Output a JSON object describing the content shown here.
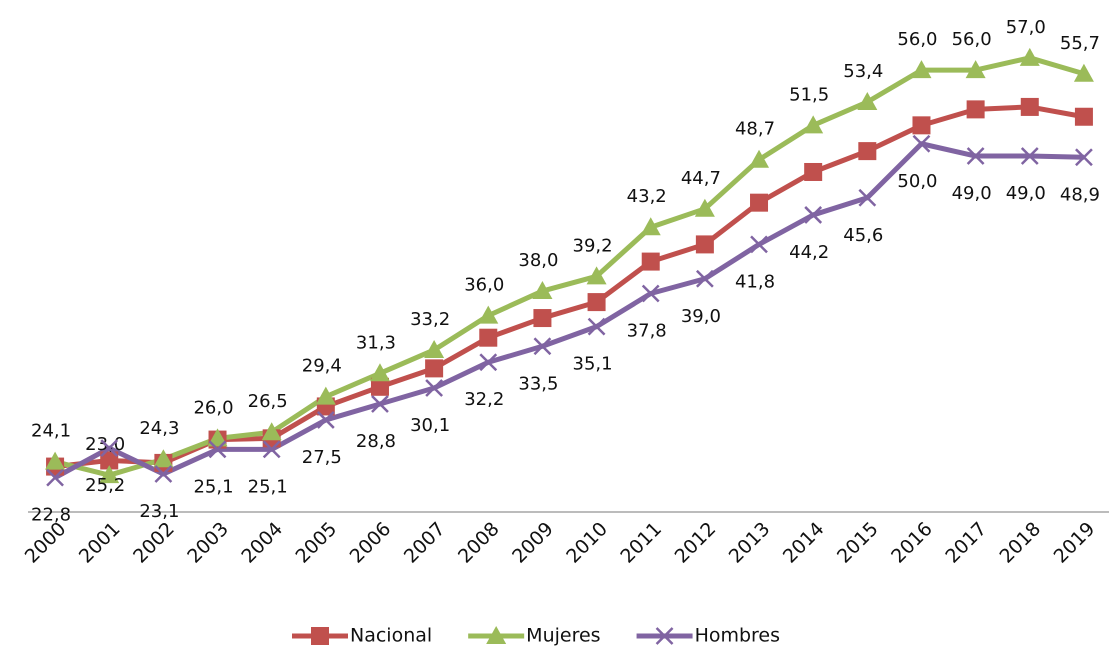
{
  "chart_data": {
    "type": "line",
    "categories": [
      "2000",
      "2001",
      "2002",
      "2003",
      "2004",
      "2005",
      "2006",
      "2007",
      "2008",
      "2009",
      "2010",
      "2011",
      "2012",
      "2013",
      "2014",
      "2015",
      "2016",
      "2017",
      "2018",
      "2019"
    ],
    "ylim": [
      20,
      60
    ],
    "series": [
      {
        "name": "Nacional",
        "color": "#c0504d",
        "marker": "square",
        "values": [
          23.7,
          24.2,
          24.0,
          25.9,
          26.0,
          28.6,
          30.2,
          31.7,
          34.2,
          35.8,
          37.1,
          40.4,
          41.8,
          45.2,
          47.7,
          49.4,
          51.5,
          52.8,
          53.0,
          52.2
        ]
      },
      {
        "name": "Mujeres",
        "color": "#9bbb59",
        "marker": "triangle",
        "values": [
          24.1,
          23.0,
          24.3,
          26.0,
          26.5,
          29.4,
          31.3,
          33.2,
          36.0,
          38.0,
          39.2,
          43.2,
          44.7,
          48.7,
          51.5,
          53.4,
          56.0,
          56.0,
          57.0,
          55.7
        ],
        "value_labels": [
          "24,1",
          "23,0",
          "24,3",
          "26,0",
          "26,5",
          "29,4",
          "31,3",
          "33,2",
          "36,0",
          "38,0",
          "39,2",
          "43,2",
          "44,7",
          "48,7",
          "51,5",
          "53,4",
          "56,0",
          "56,0",
          "57,0",
          "55,7"
        ],
        "label_position": "above"
      },
      {
        "name": "Hombres",
        "color": "#8064a2",
        "marker": "x",
        "values": [
          22.8,
          25.2,
          23.1,
          25.1,
          25.1,
          27.5,
          28.8,
          30.1,
          32.2,
          33.5,
          35.1,
          37.8,
          39.0,
          41.8,
          44.2,
          45.6,
          50.0,
          49.0,
          49.0,
          48.9
        ],
        "value_labels": [
          "22,8",
          "25,2",
          "23,1",
          "25,1",
          "25,1",
          "27,5",
          "28,8",
          "30,1",
          "32,2",
          "33,5",
          "35,1",
          "37,8",
          "39,0",
          "41,8",
          "44,2",
          "45,6",
          "50,0",
          "49,0",
          "49,0",
          "48,9"
        ],
        "label_position": "below"
      }
    ]
  }
}
